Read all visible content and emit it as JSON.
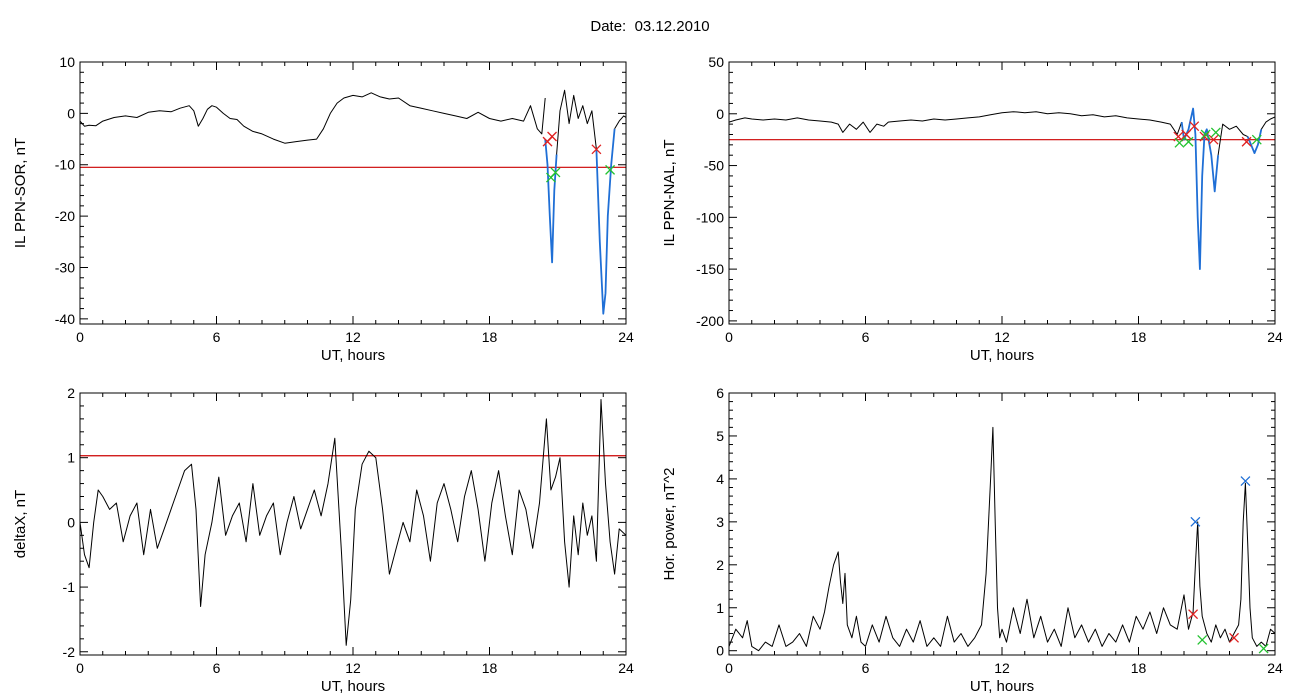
{
  "figure": {
    "date_label": "Date:",
    "date_value": "03.12.2010"
  },
  "colors": {
    "trace": "#000000",
    "threshold": "#cc0000",
    "highlight": "#1f6fd6",
    "marker_red": "#e02020",
    "marker_green": "#22c22f",
    "marker_blue": "#1f6fd6"
  },
  "chart_data": [
    {
      "id": "sor",
      "type": "line",
      "title": "",
      "xlabel": "UT, hours",
      "ylabel": "IL PPN-SOR, nT",
      "xlim": [
        0,
        24
      ],
      "ylim": [
        -41,
        10
      ],
      "xticks": [
        0,
        6,
        12,
        18,
        24
      ],
      "yticks": [
        10,
        0,
        -10,
        -20,
        -30,
        -40
      ],
      "grid": false,
      "threshold": -10.5,
      "series": [
        {
          "color": "black",
          "x": [
            0,
            0.2,
            0.4,
            0.7,
            1.0,
            1.5,
            2.0,
            2.5,
            3.0,
            3.5,
            4.0,
            4.4,
            4.8,
            5.0,
            5.2,
            5.4,
            5.6,
            5.8,
            6.0,
            6.3,
            6.6,
            6.9,
            7.2,
            7.6,
            8.0,
            8.5,
            9.0,
            9.5,
            10.0,
            10.4,
            10.7,
            11.0,
            11.3,
            11.6,
            12.0,
            12.4,
            12.8,
            13.2,
            13.6,
            14.0,
            14.5,
            15.0,
            15.5,
            16.0,
            16.5,
            17.0,
            17.5,
            18.0,
            18.5,
            19.0,
            19.5,
            19.8,
            20.1,
            20.3,
            20.45
          ],
          "y": [
            -1.5,
            -2.5,
            -2.3,
            -2.4,
            -1.5,
            -0.8,
            -0.5,
            -0.8,
            0.2,
            0.5,
            0.3,
            1.0,
            1.5,
            0.5,
            -2.5,
            -1.0,
            0.8,
            1.5,
            1.2,
            0,
            -1.0,
            -1.2,
            -2.5,
            -3.5,
            -4.0,
            -5.0,
            -5.8,
            -5.5,
            -5.2,
            -5.0,
            -3.0,
            0.0,
            2.0,
            3.0,
            3.5,
            3.2,
            4.0,
            3.2,
            2.8,
            3.0,
            1.5,
            1.0,
            0.5,
            0.0,
            -0.5,
            -1.0,
            0.2,
            -1.0,
            -1.5,
            -1.0,
            -1.5,
            1.5,
            -3.0,
            -4.0,
            3.0
          ]
        },
        {
          "color": "blue",
          "x": [
            20.45,
            20.55,
            20.65,
            20.75,
            20.85,
            20.95
          ],
          "y": [
            -5.0,
            -10.0,
            -20.0,
            -29.0,
            -15.0,
            -8.0
          ]
        },
        {
          "color": "black",
          "x": [
            20.95,
            21.1,
            21.3,
            21.5,
            21.7,
            21.9,
            22.1,
            22.3,
            22.5,
            22.7
          ],
          "y": [
            -8.0,
            0.5,
            4.5,
            -2.0,
            3.5,
            -1.0,
            1.5,
            -2.0,
            0.5,
            -7.0
          ]
        },
        {
          "color": "blue",
          "x": [
            22.7,
            22.85,
            23.0,
            23.1,
            23.2,
            23.35,
            23.5
          ],
          "y": [
            -7.0,
            -25.0,
            -39.0,
            -35.0,
            -20.0,
            -10.0,
            -3.0
          ]
        },
        {
          "color": "black",
          "x": [
            23.5,
            23.7,
            23.9,
            24.0
          ],
          "y": [
            -3.0,
            -1.5,
            -0.5,
            -0.8
          ]
        }
      ],
      "markers": [
        {
          "x": 20.55,
          "y": -5.5,
          "color": "red"
        },
        {
          "x": 20.75,
          "y": -4.5,
          "color": "red"
        },
        {
          "x": 20.7,
          "y": -12.5,
          "color": "green"
        },
        {
          "x": 20.9,
          "y": -11.5,
          "color": "green"
        },
        {
          "x": 22.7,
          "y": -7.0,
          "color": "red"
        },
        {
          "x": 23.3,
          "y": -11.0,
          "color": "green"
        }
      ]
    },
    {
      "id": "nal",
      "type": "line",
      "title": "",
      "xlabel": "UT, hours",
      "ylabel": "IL PPN-NAL, nT",
      "xlim": [
        0,
        24
      ],
      "ylim": [
        -203,
        50
      ],
      "xticks": [
        0,
        6,
        12,
        18,
        24
      ],
      "yticks": [
        50,
        0,
        -50,
        -100,
        -150,
        -200
      ],
      "grid": false,
      "threshold": -25,
      "series": [
        {
          "color": "black",
          "x": [
            0,
            0.3,
            0.7,
            1.0,
            1.5,
            2.0,
            2.5,
            3.0,
            3.5,
            4.0,
            4.5,
            4.8,
            5.0,
            5.3,
            5.6,
            5.9,
            6.2,
            6.5,
            6.8,
            7.0,
            7.5,
            8.0,
            8.5,
            9.0,
            9.5,
            10.0,
            10.5,
            11.0,
            11.5,
            12.0,
            12.5,
            13.0,
            13.5,
            14.0,
            14.5,
            15.0,
            15.5,
            16.0,
            16.5,
            17.0,
            17.5,
            18.0,
            18.5,
            19.0,
            19.4,
            19.7,
            19.9
          ],
          "y": [
            -8.0,
            -6.0,
            -4.0,
            -5.0,
            -6.0,
            -5.0,
            -6.0,
            -4.0,
            -6.0,
            -7.0,
            -8.0,
            -10.0,
            -18.0,
            -10.0,
            -15.0,
            -8.0,
            -18.0,
            -10.0,
            -12.0,
            -8.0,
            -7.0,
            -6.0,
            -7.0,
            -5.0,
            -6.0,
            -5.0,
            -4.0,
            -3.0,
            -1.0,
            1.0,
            2.0,
            1.0,
            2.0,
            0.0,
            1.0,
            0.0,
            -2.0,
            -1.0,
            -3.0,
            -2.0,
            -4.0,
            -5.0,
            -6.0,
            -8.0,
            -10.0,
            -20.0,
            -8.0
          ]
        },
        {
          "color": "blue",
          "x": [
            19.9,
            20.0,
            20.2,
            20.4,
            20.5,
            20.6,
            20.7,
            20.8,
            20.9,
            21.0,
            21.2,
            21.35,
            21.5
          ],
          "y": [
            -8.0,
            -25.0,
            -15.0,
            5.0,
            -20.0,
            -100.0,
            -150.0,
            -60.0,
            -20.0,
            -15.0,
            -40.0,
            -75.0,
            -40.0
          ]
        },
        {
          "color": "black",
          "x": [
            21.5,
            21.7,
            22.0,
            22.3,
            22.6,
            22.8
          ],
          "y": [
            -40.0,
            -10.0,
            -15.0,
            -12.0,
            -20.0,
            -22.0
          ]
        },
        {
          "color": "blue",
          "x": [
            22.8,
            22.95,
            23.1,
            23.25,
            23.4
          ],
          "y": [
            -22.0,
            -30.0,
            -38.0,
            -30.0,
            -15.0
          ]
        },
        {
          "color": "black",
          "x": [
            23.4,
            23.6,
            23.8,
            24.0
          ],
          "y": [
            -15.0,
            -8.0,
            -5.0,
            -3.0
          ]
        }
      ],
      "markers": [
        {
          "x": 19.75,
          "y": -22.0,
          "color": "red"
        },
        {
          "x": 20.1,
          "y": -20.0,
          "color": "red"
        },
        {
          "x": 20.45,
          "y": -12.0,
          "color": "red"
        },
        {
          "x": 20.9,
          "y": -22.0,
          "color": "red"
        },
        {
          "x": 21.3,
          "y": -25.0,
          "color": "red"
        },
        {
          "x": 22.75,
          "y": -27.0,
          "color": "red"
        },
        {
          "x": 19.8,
          "y": -28.0,
          "color": "green"
        },
        {
          "x": 20.2,
          "y": -27.0,
          "color": "green"
        },
        {
          "x": 20.95,
          "y": -20.0,
          "color": "green"
        },
        {
          "x": 21.4,
          "y": -18.0,
          "color": "green"
        },
        {
          "x": 23.2,
          "y": -25.0,
          "color": "green"
        }
      ]
    },
    {
      "id": "deltax",
      "type": "line",
      "title": "",
      "xlabel": "UT, hours",
      "ylabel": "deltaX, nT",
      "xlim": [
        0,
        24
      ],
      "ylim": [
        -2.05,
        2.0
      ],
      "xticks": [
        0,
        6,
        12,
        18,
        24
      ],
      "yticks": [
        2,
        1,
        0,
        -1,
        -2
      ],
      "grid": false,
      "threshold": 1.03,
      "series": [
        {
          "color": "black",
          "x": [
            0,
            0.2,
            0.4,
            0.6,
            0.8,
            1.0,
            1.3,
            1.6,
            1.9,
            2.2,
            2.5,
            2.8,
            3.1,
            3.4,
            3.7,
            4.0,
            4.3,
            4.6,
            4.9,
            5.1,
            5.3,
            5.5,
            5.8,
            6.1,
            6.4,
            6.7,
            7.0,
            7.3,
            7.6,
            7.9,
            8.2,
            8.5,
            8.8,
            9.1,
            9.4,
            9.7,
            10.0,
            10.3,
            10.6,
            10.9,
            11.2,
            11.5,
            11.7,
            11.9,
            12.1,
            12.4,
            12.7,
            13.0,
            13.3,
            13.6,
            13.9,
            14.2,
            14.5,
            14.8,
            15.1,
            15.4,
            15.7,
            16.0,
            16.3,
            16.6,
            16.9,
            17.2,
            17.5,
            17.8,
            18.1,
            18.4,
            18.7,
            19.0,
            19.3,
            19.6,
            19.9,
            20.2,
            20.5,
            20.7,
            20.9,
            21.1,
            21.3,
            21.5,
            21.7,
            21.9,
            22.1,
            22.3,
            22.5,
            22.7,
            22.9,
            23.1,
            23.3,
            23.5,
            23.7,
            24.0
          ],
          "y": [
            0.0,
            -0.5,
            -0.7,
            0.0,
            0.5,
            0.4,
            0.2,
            0.3,
            -0.3,
            0.1,
            0.3,
            -0.5,
            0.2,
            -0.4,
            -0.1,
            0.2,
            0.5,
            0.8,
            0.9,
            0.2,
            -1.3,
            -0.5,
            0.0,
            0.7,
            -0.2,
            0.1,
            0.3,
            -0.3,
            0.6,
            -0.2,
            0.1,
            0.3,
            -0.5,
            0.0,
            0.4,
            -0.1,
            0.2,
            0.5,
            0.1,
            0.6,
            1.3,
            -0.5,
            -1.9,
            -1.2,
            0.2,
            0.9,
            1.1,
            1.0,
            0.2,
            -0.8,
            -0.4,
            0.0,
            -0.3,
            0.5,
            0.1,
            -0.6,
            0.3,
            0.6,
            0.2,
            -0.3,
            0.4,
            0.8,
            0.2,
            -0.6,
            0.3,
            0.8,
            0.1,
            -0.5,
            0.5,
            0.2,
            -0.4,
            0.3,
            1.6,
            0.5,
            0.7,
            1.0,
            -0.3,
            -1.0,
            0.1,
            -0.5,
            0.3,
            -0.2,
            0.1,
            -0.6,
            1.9,
            0.6,
            -0.3,
            -0.8,
            -0.1,
            -0.2
          ]
        }
      ],
      "markers": []
    },
    {
      "id": "power",
      "type": "line",
      "title": "",
      "xlabel": "UT, hours",
      "ylabel": "Hor. power, nT^2",
      "xlim": [
        0,
        24
      ],
      "ylim": [
        -0.1,
        6.0
      ],
      "xticks": [
        0,
        6,
        12,
        18,
        24
      ],
      "yticks": [
        6,
        5,
        4,
        3,
        2,
        1,
        0
      ],
      "grid": false,
      "threshold": null,
      "series": [
        {
          "color": "black",
          "x": [
            0,
            0.3,
            0.6,
            0.8,
            1.0,
            1.3,
            1.6,
            1.9,
            2.2,
            2.5,
            2.8,
            3.1,
            3.4,
            3.7,
            4.0,
            4.2,
            4.4,
            4.6,
            4.8,
            4.9,
            5.0,
            5.1,
            5.2,
            5.4,
            5.6,
            5.8,
            6.0,
            6.3,
            6.6,
            6.9,
            7.2,
            7.5,
            7.8,
            8.1,
            8.4,
            8.7,
            9.0,
            9.3,
            9.6,
            9.9,
            10.2,
            10.5,
            10.8,
            11.1,
            11.3,
            11.5,
            11.6,
            11.7,
            11.8,
            11.9,
            12.0,
            12.2,
            12.5,
            12.8,
            13.1,
            13.4,
            13.7,
            14.0,
            14.3,
            14.6,
            14.9,
            15.2,
            15.5,
            15.8,
            16.1,
            16.4,
            16.7,
            17.0,
            17.3,
            17.6,
            17.9,
            18.2,
            18.5,
            18.8,
            19.1,
            19.4,
            19.7,
            20.0,
            20.2,
            20.4,
            20.5,
            20.6,
            20.7,
            20.8,
            21.0,
            21.2,
            21.4,
            21.6,
            21.8,
            22.0,
            22.2,
            22.4,
            22.5,
            22.6,
            22.7,
            22.8,
            22.9,
            23.0,
            23.2,
            23.4,
            23.6,
            23.8,
            24.0
          ],
          "y": [
            0.1,
            0.5,
            0.3,
            0.7,
            0.1,
            0.0,
            0.2,
            0.1,
            0.6,
            0.1,
            0.2,
            0.4,
            0.1,
            0.8,
            0.5,
            0.9,
            1.5,
            2.0,
            2.3,
            1.6,
            1.1,
            1.8,
            0.6,
            0.3,
            0.8,
            0.2,
            0.1,
            0.6,
            0.2,
            0.8,
            0.3,
            0.1,
            0.5,
            0.2,
            0.7,
            0.1,
            0.3,
            0.1,
            0.8,
            0.2,
            0.4,
            0.1,
            0.3,
            0.6,
            1.8,
            4.0,
            5.2,
            3.0,
            1.0,
            0.3,
            0.5,
            0.2,
            1.0,
            0.4,
            1.2,
            0.3,
            0.8,
            0.2,
            0.5,
            0.1,
            1.0,
            0.3,
            0.6,
            0.2,
            0.5,
            0.1,
            0.4,
            0.2,
            0.6,
            0.2,
            0.8,
            0.5,
            0.9,
            0.4,
            1.0,
            0.6,
            0.5,
            1.3,
            0.5,
            0.9,
            2.0,
            3.0,
            1.5,
            0.8,
            0.4,
            0.2,
            0.6,
            0.3,
            0.5,
            0.2,
            0.4,
            0.6,
            1.2,
            3.0,
            3.9,
            2.5,
            1.0,
            0.3,
            0.1,
            0.2,
            0.1,
            0.5,
            0.4
          ]
        }
      ],
      "markers": [
        {
          "x": 20.5,
          "y": 3.0,
          "color": "blue"
        },
        {
          "x": 22.7,
          "y": 3.95,
          "color": "blue"
        },
        {
          "x": 20.4,
          "y": 0.85,
          "color": "red"
        },
        {
          "x": 22.2,
          "y": 0.3,
          "color": "red"
        },
        {
          "x": 20.8,
          "y": 0.25,
          "color": "green"
        },
        {
          "x": 23.5,
          "y": 0.05,
          "color": "green"
        }
      ]
    }
  ]
}
